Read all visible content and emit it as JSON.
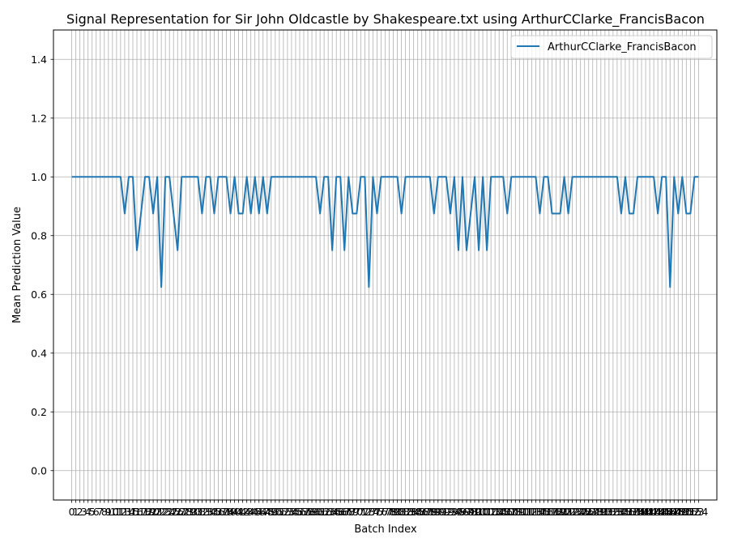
{
  "chart_data": {
    "type": "line",
    "title": "Signal Representation for Sir John Oldcastle by Shakespeare.txt using ArthurCClarke_FrancisBacon",
    "xlabel": "Batch Index",
    "ylabel": "Mean Prediction Value",
    "xlim": [
      -4.5,
      158.5
    ],
    "ylim": [
      -0.1,
      1.5
    ],
    "yticks": [
      0.0,
      0.2,
      0.4,
      0.6,
      0.8,
      1.0,
      1.2,
      1.4
    ],
    "grid": true,
    "legend_position": "top-right",
    "color": "#1f77b4",
    "series": [
      {
        "name": "ArthurCClarke_FrancisBacon",
        "values": [
          1,
          1,
          1,
          1,
          1,
          1,
          1,
          1,
          1,
          1,
          1,
          1,
          1,
          0.875,
          1,
          1,
          0.75,
          0.875,
          1,
          1,
          0.875,
          1,
          0.625,
          1,
          1,
          0.875,
          0.75,
          1,
          1,
          1,
          1,
          1,
          0.875,
          1,
          1,
          0.875,
          1,
          1,
          1,
          0.875,
          1,
          0.875,
          0.875,
          1,
          0.875,
          1,
          0.875,
          1,
          0.875,
          1,
          1,
          1,
          1,
          1,
          1,
          1,
          1,
          1,
          1,
          1,
          1,
          0.875,
          1,
          1,
          0.75,
          1,
          1,
          0.75,
          1,
          0.875,
          0.875,
          1,
          1,
          0.625,
          1,
          0.875,
          1,
          1,
          1,
          1,
          1,
          0.875,
          1,
          1,
          1,
          1,
          1,
          1,
          1,
          0.875,
          1,
          1,
          1,
          0.875,
          1,
          0.75,
          1,
          0.75,
          0.875,
          1,
          0.75,
          1,
          0.75,
          1,
          1,
          1,
          1,
          0.875,
          1,
          1,
          1,
          1,
          1,
          1,
          1,
          0.875,
          1,
          1,
          0.875,
          0.875,
          0.875,
          1,
          0.875,
          1,
          1,
          1,
          1,
          1,
          1,
          1,
          1,
          1,
          1,
          1,
          1,
          0.875,
          1,
          0.875,
          0.875,
          1,
          1,
          1,
          1,
          1,
          0.875,
          1,
          1,
          0.625,
          1,
          0.875,
          1,
          0.875,
          0.875,
          1,
          1
        ]
      }
    ]
  }
}
